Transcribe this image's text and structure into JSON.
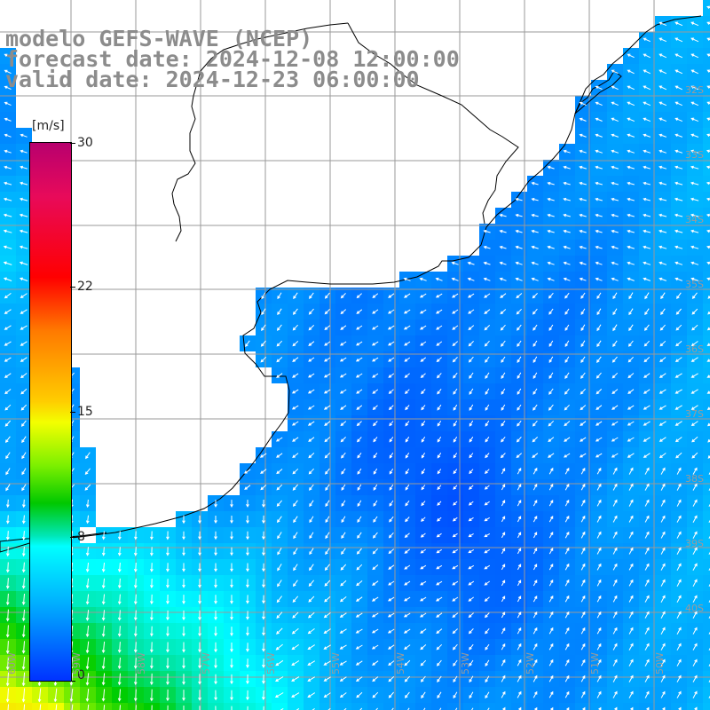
{
  "title": {
    "line1": "modelo GEFS-WAVE (NCEP)",
    "line2": "forecast date: 2024-12-08 12:00:00",
    "line3": "valid date: 2024-12-23 06:00:00"
  },
  "colorbar": {
    "unit": "[m/s]",
    "ticks": [
      "30",
      "22",
      "15",
      "8",
      "0"
    ],
    "tick_values": [
      30,
      22,
      15,
      8,
      0
    ],
    "min": 0,
    "max": 30
  },
  "grid": {
    "lat_labels": [
      "32S",
      "33S",
      "34S",
      "35S",
      "36S",
      "37S",
      "38S",
      "39S",
      "40S"
    ],
    "lon_labels": [
      "60W",
      "59W",
      "58W",
      "57W",
      "56W",
      "55W",
      "54W",
      "53W",
      "52W",
      "51W",
      "50W"
    ]
  },
  "colors": {
    "land": "#ffffff",
    "coast": "#000000",
    "gridline": "#9a9a9a",
    "arrow": "#ffffff",
    "title_text": "#8c8c8c"
  }
}
